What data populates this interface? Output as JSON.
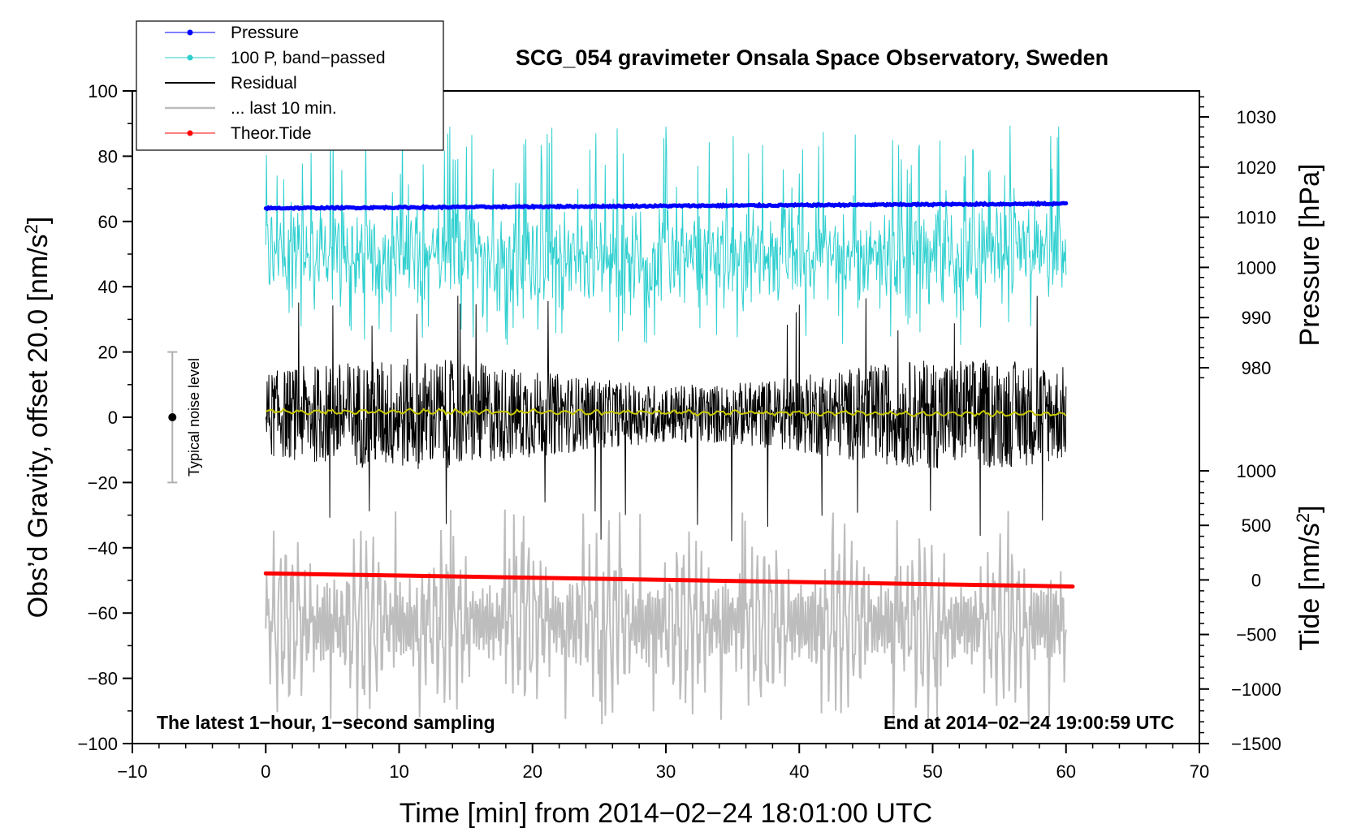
{
  "chart_data": {
    "type": "line",
    "title": "SCG_054 gravimeter Onsala Space Observatory, Sweden",
    "xlabel": "Time [min] from 2014−02−24 18:01:00 UTC",
    "ylabel_main": "Obs’d Gravity, offset 20.0 [nm/s²]",
    "ylabel_main_prefix": "Obs’d Gravity, offset 20.0 [nm/s",
    "ylabel_main_sup": "2",
    "ylabel_main_suffix": "]",
    "ylabel_pressure": "Pressure [hPa]",
    "ylabel_tide_prefix": "Tide [nm/s",
    "ylabel_tide_sup": "2",
    "ylabel_tide_suffix": "]",
    "xlim": [
      -10,
      70
    ],
    "ylim": [
      -100,
      100
    ],
    "x_ticks": [
      "−10",
      "0",
      "10",
      "20",
      "30",
      "40",
      "50",
      "60",
      "70"
    ],
    "y_ticks": [
      "−100",
      "−80",
      "−60",
      "−40",
      "−20",
      "0",
      "20",
      "40",
      "60",
      "80",
      "100"
    ],
    "pressure_axis": {
      "ticks": [
        "980",
        "990",
        "1000",
        "1010",
        "1020",
        "1030"
      ],
      "tick_values": [
        980,
        990,
        1000,
        1010,
        1020,
        1030
      ],
      "range_hpa": [
        970,
        1034
      ]
    },
    "tide_axis": {
      "ticks": [
        "−1500",
        "−1000",
        "−500",
        "0",
        "500",
        "1000"
      ],
      "tick_values": [
        -1500,
        -1000,
        -500,
        0,
        500,
        1000
      ],
      "range": [
        -1500,
        1000
      ]
    },
    "legend": [
      {
        "label": "Pressure",
        "color": "#0000ff",
        "marker": true
      },
      {
        "label": "100 P, band−passed",
        "color": "#2ecfcf",
        "marker": true
      },
      {
        "label": "Residual",
        "color": "#000000",
        "marker": false
      },
      {
        "label": "... last 10 min.",
        "color": "#bdbdbd",
        "marker": false
      },
      {
        "label": "Theor.Tide",
        "color": "#ff0000",
        "marker": true
      }
    ],
    "series": [
      {
        "name": "Pressure",
        "axis": "pressure_hpa",
        "x_range": [
          0,
          60
        ],
        "start": 1011.8,
        "end": 1012.7,
        "color": "#0000ff"
      },
      {
        "name": "100 P, band−passed",
        "axis": "gravity",
        "x_range": [
          0,
          60
        ],
        "center": 50,
        "typical_range": [
          20,
          92
        ],
        "color": "#2ecfcf"
      },
      {
        "name": "Residual",
        "axis": "gravity",
        "x_range": [
          0,
          60
        ],
        "center": 1,
        "typical_range": [
          -35,
          40
        ],
        "color": "#000000"
      },
      {
        "name": "Residual smoothed",
        "axis": "gravity",
        "x_range": [
          0,
          60
        ],
        "center": 1.5,
        "color": "#c8c800"
      },
      {
        "name": "... last 10 min.",
        "axis": "gravity",
        "x_range": [
          0,
          60
        ],
        "center": -63,
        "typical_range": [
          -95,
          -30
        ],
        "color": "#bdbdbd"
      },
      {
        "name": "Theor.Tide",
        "axis": "tide",
        "x_range": [
          0,
          60.5
        ],
        "start": 60,
        "end": -60,
        "color": "#ff0000"
      }
    ],
    "noise_bar": {
      "label": "Typical noise level",
      "x": -7,
      "y_range": [
        -20,
        20
      ],
      "center": 0
    },
    "footer_left": "The latest 1−hour, 1−second sampling",
    "footer_right": "End at 2014−02−24 19:00:59 UTC"
  }
}
